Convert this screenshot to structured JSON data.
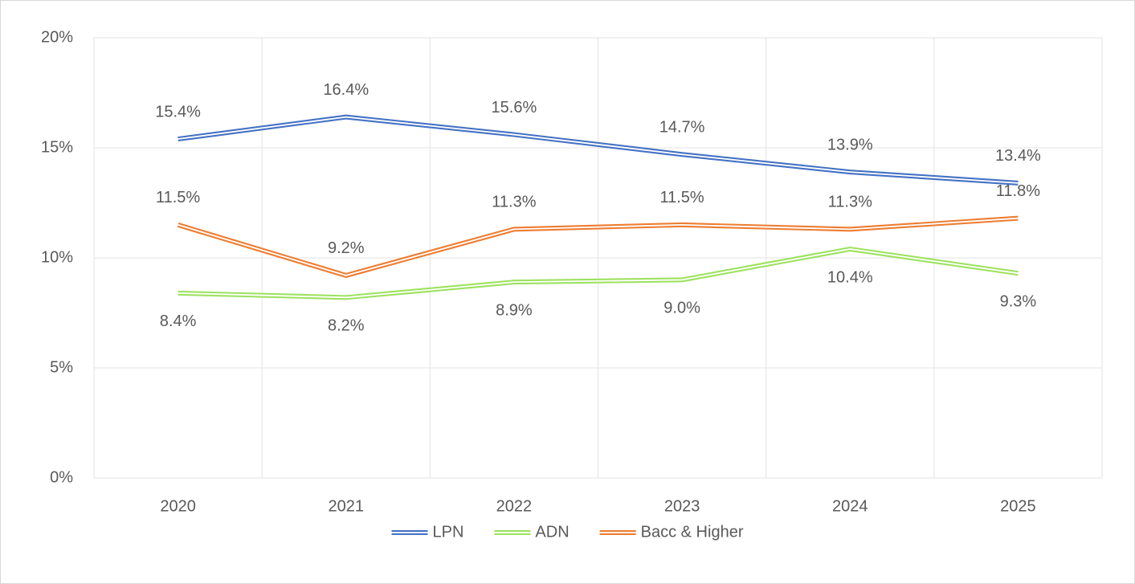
{
  "chart_data": {
    "type": "line",
    "categories": [
      "2020",
      "2021",
      "2022",
      "2023",
      "2024",
      "2025"
    ],
    "series": [
      {
        "name": "LPN",
        "color": "#4472c4",
        "values": [
          15.4,
          16.4,
          15.6,
          14.7,
          13.9,
          13.4
        ],
        "value_labels": [
          "15.4%",
          "16.4%",
          "15.6%",
          "14.7%",
          "13.9%",
          "13.4%"
        ],
        "label_position": "above"
      },
      {
        "name": "ADN",
        "color": "#9de25f",
        "values": [
          8.4,
          8.2,
          8.9,
          9.0,
          10.4,
          9.3
        ],
        "value_labels": [
          "8.4%",
          "8.2%",
          "8.9%",
          "9.0%",
          "10.4%",
          "9.3%"
        ],
        "label_position": "below"
      },
      {
        "name": "Bacc & Higher",
        "color": "#ed7d31",
        "values": [
          11.5,
          9.2,
          11.3,
          11.5,
          11.3,
          11.8
        ],
        "value_labels": [
          "11.5%",
          "9.2%",
          "11.3%",
          "11.5%",
          "11.3%",
          "11.8%"
        ],
        "label_position": "above"
      }
    ],
    "ylim": [
      0,
      20
    ],
    "yticks": [
      {
        "value": 0,
        "label": "0%"
      },
      {
        "value": 5,
        "label": "5%"
      },
      {
        "value": 10,
        "label": "10%"
      },
      {
        "value": 15,
        "label": "15%"
      },
      {
        "value": 20,
        "label": "20%"
      }
    ],
    "grid": true,
    "legend": "bottom"
  }
}
